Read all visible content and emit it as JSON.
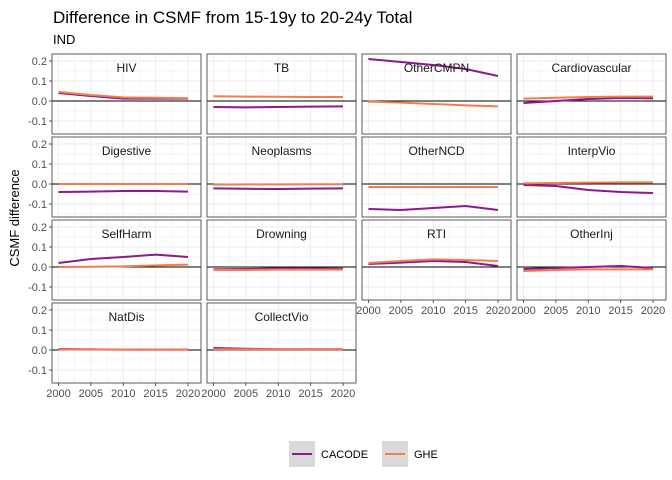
{
  "chart_data": {
    "type": "line",
    "title": "Difference in CSMF from 15-19y to 20-24y Total",
    "subtitle": "IND",
    "xlabel": "",
    "ylabel": "CSMF difference",
    "xlim": [
      1999,
      2022
    ],
    "ylim": [
      -0.165,
      0.235
    ],
    "x_ticks": [
      2000,
      2005,
      2010,
      2015,
      2020
    ],
    "y_ticks": [
      -0.1,
      0.0,
      0.1,
      0.2
    ],
    "y_tick_labels": [
      "-0.1",
      "0.0",
      "0.1",
      "0.2"
    ],
    "grid": true,
    "legend_position": "bottom",
    "series_names": [
      "CACODE",
      "GHE"
    ],
    "colors": {
      "CACODE": "#8B1A8B",
      "GHE": "#F47C4B"
    },
    "x": [
      2000,
      2005,
      2010,
      2015,
      2020
    ],
    "panels": [
      {
        "name": "HIV",
        "CACODE": [
          0.04,
          0.025,
          0.012,
          0.012,
          0.012
        ],
        "GHE": [
          0.045,
          0.03,
          0.018,
          0.016,
          0.014
        ]
      },
      {
        "name": "TB",
        "CACODE": [
          -0.03,
          -0.032,
          -0.03,
          -0.028,
          -0.027
        ],
        "GHE": [
          0.024,
          0.022,
          0.021,
          0.02,
          0.02
        ]
      },
      {
        "name": "OtherCMPN",
        "CACODE": [
          0.21,
          0.195,
          0.18,
          0.16,
          0.125
        ],
        "GHE": [
          -0.003,
          -0.008,
          -0.015,
          -0.022,
          -0.027
        ]
      },
      {
        "name": "Cardiovascular",
        "CACODE": [
          -0.01,
          0.0,
          0.01,
          0.015,
          0.013
        ],
        "GHE": [
          0.012,
          0.016,
          0.02,
          0.022,
          0.022
        ]
      },
      {
        "name": "Digestive",
        "CACODE": [
          -0.04,
          -0.038,
          -0.035,
          -0.035,
          -0.038
        ],
        "GHE": [
          0.0,
          0.0,
          0.0,
          0.0,
          0.0
        ]
      },
      {
        "name": "Neoplasms",
        "CACODE": [
          -0.022,
          -0.024,
          -0.025,
          -0.023,
          -0.022
        ],
        "GHE": [
          -0.003,
          -0.002,
          -0.002,
          -0.001,
          -0.001
        ]
      },
      {
        "name": "OtherNCD",
        "CACODE": [
          -0.125,
          -0.13,
          -0.12,
          -0.11,
          -0.13
        ],
        "GHE": [
          -0.015,
          -0.015,
          -0.015,
          -0.015,
          -0.015
        ]
      },
      {
        "name": "InterpVio",
        "CACODE": [
          -0.005,
          -0.01,
          -0.03,
          -0.04,
          -0.045
        ],
        "GHE": [
          0.003,
          0.005,
          0.007,
          0.008,
          0.008
        ]
      },
      {
        "name": "SelfHarm",
        "CACODE": [
          0.02,
          0.04,
          0.05,
          0.062,
          0.05
        ],
        "GHE": [
          0.0,
          0.001,
          0.003,
          0.008,
          0.012
        ]
      },
      {
        "name": "Drowning",
        "CACODE": [
          -0.012,
          -0.01,
          -0.007,
          -0.007,
          -0.009
        ],
        "GHE": [
          -0.015,
          -0.015,
          -0.013,
          -0.013,
          -0.013
        ]
      },
      {
        "name": "RTI",
        "CACODE": [
          0.015,
          0.022,
          0.03,
          0.025,
          0.005
        ],
        "GHE": [
          0.02,
          0.03,
          0.038,
          0.035,
          0.03
        ]
      },
      {
        "name": "OtherInj",
        "CACODE": [
          -0.01,
          -0.005,
          0.0,
          0.005,
          -0.005
        ],
        "GHE": [
          -0.02,
          -0.015,
          -0.012,
          -0.012,
          -0.012
        ]
      },
      {
        "name": "NatDis",
        "CACODE": [
          0.005,
          0.003,
          0.002,
          0.002,
          0.002
        ],
        "GHE": [
          0.003,
          0.002,
          0.002,
          0.002,
          0.002
        ]
      },
      {
        "name": "CollectVio",
        "CACODE": [
          0.01,
          0.006,
          0.004,
          0.004,
          0.004
        ],
        "GHE": [
          0.004,
          0.004,
          0.004,
          0.004,
          0.004
        ]
      }
    ]
  }
}
